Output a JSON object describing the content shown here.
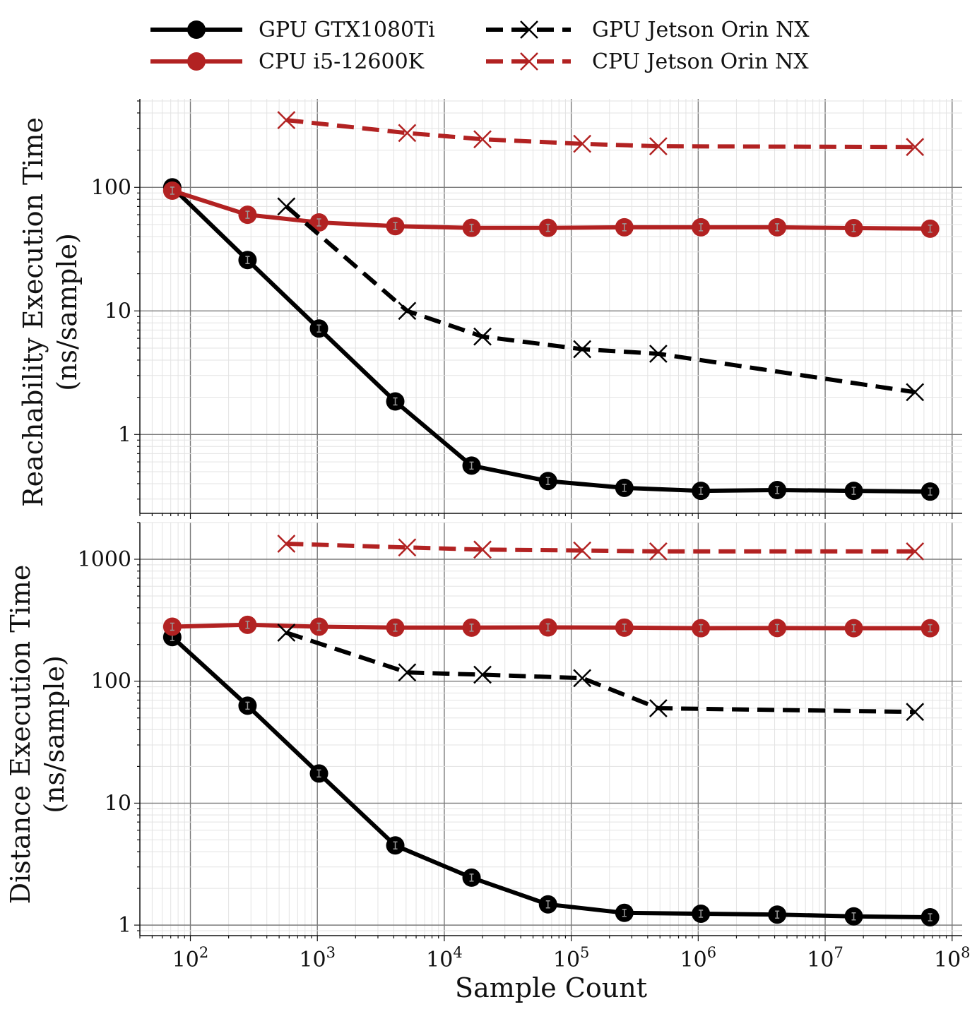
{
  "chart_data": {
    "type": "line",
    "xlabel": "Sample Count",
    "x_scale": "log",
    "xlim": [
      40,
      120000000
    ],
    "x_ticks": [
      {
        "value": 100,
        "base": "10",
        "exp": "2"
      },
      {
        "value": 1000,
        "base": "10",
        "exp": "3"
      },
      {
        "value": 10000,
        "base": "10",
        "exp": "4"
      },
      {
        "value": 100000,
        "base": "10",
        "exp": "5"
      },
      {
        "value": 1000000,
        "base": "10",
        "exp": "6"
      },
      {
        "value": 10000000,
        "base": "10",
        "exp": "7"
      },
      {
        "value": 100000000,
        "base": "10",
        "exp": "8"
      }
    ],
    "grid": true,
    "legend_position": "top",
    "legend": [
      {
        "name": "GPU GTX1080Ti",
        "color": "#000000",
        "linestyle": "solid",
        "marker": "circle"
      },
      {
        "name": "GPU Jetson Orin NX",
        "color": "#000000",
        "linestyle": "dashed",
        "marker": "x"
      },
      {
        "name": "CPU i5-12600K",
        "color": "#b22222",
        "linestyle": "solid",
        "marker": "circle"
      },
      {
        "name": "CPU Jetson Orin NX",
        "color": "#b22222",
        "linestyle": "dashed",
        "marker": "x"
      }
    ],
    "panels": [
      {
        "ylabel_line1": "Reachability Execution Time",
        "ylabel_line2": "(ns/sample)",
        "y_scale": "log",
        "ylim": [
          0.23,
          520
        ],
        "y_ticks": [
          {
            "value": 1,
            "label": "1"
          },
          {
            "value": 10,
            "label": "10"
          },
          {
            "value": 100,
            "label": "100"
          }
        ],
        "series": [
          {
            "name": "GPU GTX1080Ti",
            "x": [
              72,
              282,
              1030,
              4110,
              16400,
              65600,
              262000,
              1050000,
              4190000,
              16800000,
              67100000
            ],
            "y": [
              100,
              25.8,
              7.2,
              1.85,
              0.56,
              0.42,
              0.37,
              0.35,
              0.355,
              0.35,
              0.345
            ]
          },
          {
            "name": "CPU i5-12600K",
            "x": [
              72,
              282,
              1030,
              4110,
              16400,
              65600,
              262000,
              1050000,
              4190000,
              16800000,
              67100000
            ],
            "y": [
              94,
              60,
              52,
              48.5,
              47,
              47,
              47.5,
              47.5,
              47.5,
              46.8,
              46.3
            ]
          },
          {
            "name": "GPU Jetson Orin NX",
            "x": [
              570,
              5100,
              20000,
              122000,
              485000,
              51000000
            ],
            "y": [
              70,
              10,
              6.2,
              4.9,
              4.5,
              2.2
            ]
          },
          {
            "name": "CPU Jetson Orin NX",
            "x": [
              570,
              5100,
              20000,
              122000,
              485000,
              51000000
            ],
            "y": [
              350,
              275,
              245,
              225,
              215,
              212
            ]
          }
        ]
      },
      {
        "ylabel_line1": "Distance Execution Time",
        "ylabel_line2": "(ns/sample)",
        "y_scale": "log",
        "ylim": [
          0.82,
          2000
        ],
        "y_ticks": [
          {
            "value": 1,
            "label": "1"
          },
          {
            "value": 10,
            "label": "10"
          },
          {
            "value": 100,
            "label": "100"
          },
          {
            "value": 1000,
            "label": "1000"
          }
        ],
        "series": [
          {
            "name": "GPU GTX1080Ti",
            "x": [
              72,
              282,
              1030,
              4110,
              16400,
              65600,
              262000,
              1050000,
              4190000,
              16800000,
              67100000
            ],
            "y": [
              230,
              63,
              17.5,
              4.5,
              2.45,
              1.48,
              1.26,
              1.24,
              1.22,
              1.18,
              1.16
            ]
          },
          {
            "name": "CPU i5-12600K",
            "x": [
              72,
              282,
              1030,
              4110,
              16400,
              65600,
              262000,
              1050000,
              4190000,
              16800000,
              67100000
            ],
            "y": [
              280,
              290,
              280,
              275,
              275,
              276,
              275,
              272,
              273,
              272,
              272
            ]
          },
          {
            "name": "GPU Jetson Orin NX",
            "x": [
              570,
              5100,
              20000,
              122000,
              485000,
              51000000
            ],
            "y": [
              250,
              118,
              113,
              106,
              60,
              56
            ]
          },
          {
            "name": "CPU Jetson Orin NX",
            "x": [
              570,
              5100,
              20000,
              122000,
              485000,
              51000000
            ],
            "y": [
              1340,
              1250,
              1200,
              1180,
              1160,
              1160
            ]
          }
        ]
      }
    ]
  }
}
